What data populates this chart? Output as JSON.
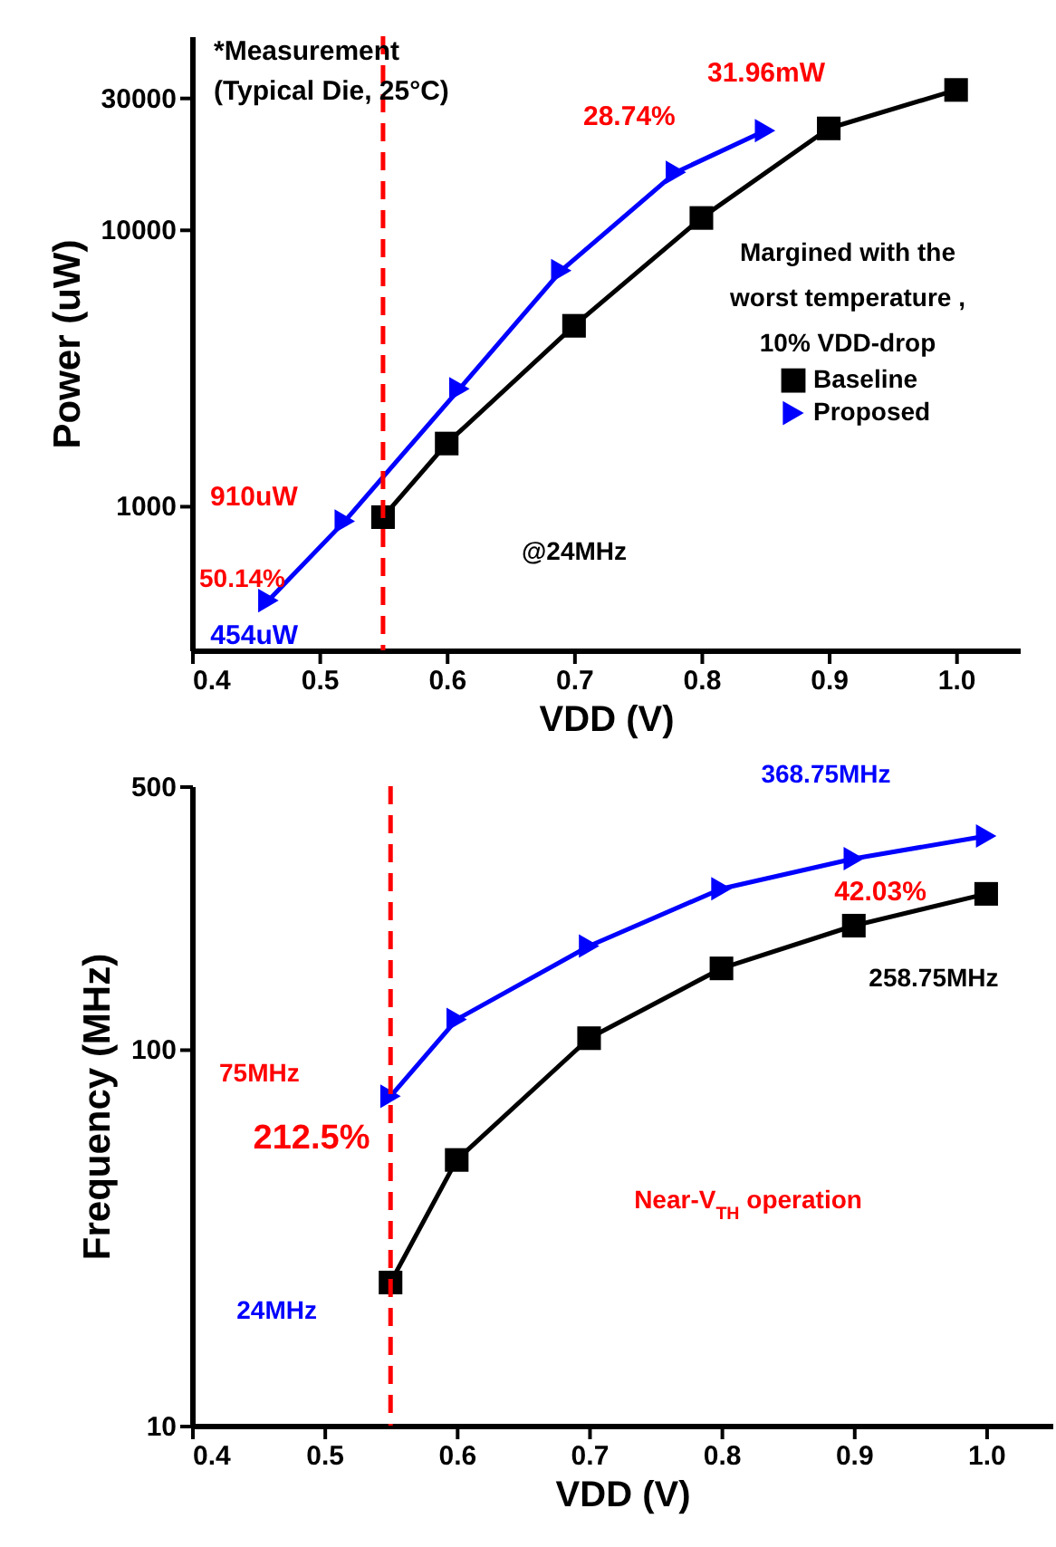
{
  "chart_data": [
    {
      "type": "line",
      "xlabel": "VDD (V)",
      "ylabel": "Power (uW)",
      "log": "y",
      "grid": false,
      "legend": "right",
      "xlim": [
        0.4,
        1.05
      ],
      "xticks": [
        0.4,
        0.5,
        0.6,
        0.7,
        0.8,
        0.9,
        {
          "value": 1,
          "label": "1.0"
        }
      ],
      "ylim": [
        300,
        50000
      ],
      "yticks": [
        1000,
        10000,
        30000
      ],
      "series": [
        {
          "name": "Baseline",
          "color": "#000000",
          "marker": "square",
          "x": [
            0.55,
            0.6,
            0.7,
            0.8,
            0.9,
            1.0
          ],
          "values": [
            910,
            1680,
            4480,
            11000,
            23200,
            31960
          ]
        },
        {
          "name": "Proposed",
          "color": "#0000ff",
          "marker": "triangle",
          "x": [
            0.46,
            0.52,
            0.61,
            0.69,
            0.78,
            0.85
          ],
          "values": [
            454,
            880,
            2650,
            7100,
            16100,
            22770
          ]
        }
      ],
      "ref_lines": [
        {
          "axis": "x",
          "value": 0.55,
          "color": "#ff0000",
          "line_style": "dashed"
        }
      ],
      "annotations": [
        "*Measurement",
        "(Typical Die, 25°C)",
        "Margined with the",
        "worst temperature ,",
        "10% VDD-drop",
        "@24MHz",
        "50.14%",
        "28.74%",
        "31.96mW",
        "910uW",
        {
          "text": "454uW",
          "x": 0.46,
          "y": 454
        }
      ]
    },
    {
      "type": "line",
      "xlabel": "VDD (V)",
      "ylabel": "Frequency (MHz)",
      "log": "y",
      "grid": false,
      "xlim": [
        0.4,
        1.05
      ],
      "xticks": [
        0.4,
        0.5,
        0.6,
        0.7,
        0.8,
        0.9,
        {
          "value": 1,
          "label": "1.0"
        }
      ],
      "ylim": [
        10,
        500
      ],
      "yticks": [
        10,
        100,
        500
      ],
      "series": [
        {
          "color": "#000000",
          "marker": "square",
          "x": [
            0.55,
            0.6,
            0.7,
            0.8,
            0.9,
            1.0
          ],
          "values": [
            24,
            50.8,
            107,
            164,
            213,
            258.75
          ]
        },
        {
          "color": "#0000ff",
          "marker": "triangle",
          "x": [
            0.55,
            0.6,
            0.7,
            0.8,
            0.9,
            1.0
          ],
          "values": [
            75,
            120,
            188,
            267,
            321,
            368.75
          ]
        }
      ],
      "ref_lines": [
        {
          "axis": "x",
          "value": 0.55,
          "color": "#ff0000",
          "line_style": "dashed"
        }
      ],
      "annotations": [
        "42.03%",
        "212.5%",
        "Near-V$_{TH}$ operation",
        "368.75MHz",
        {
          "text": "258.75MHz",
          "x": 1.0,
          "y": 258.75
        },
        "75MHz",
        {
          "text": "24MHz",
          "x": 0.55,
          "y": 24
        }
      ]
    }
  ]
}
